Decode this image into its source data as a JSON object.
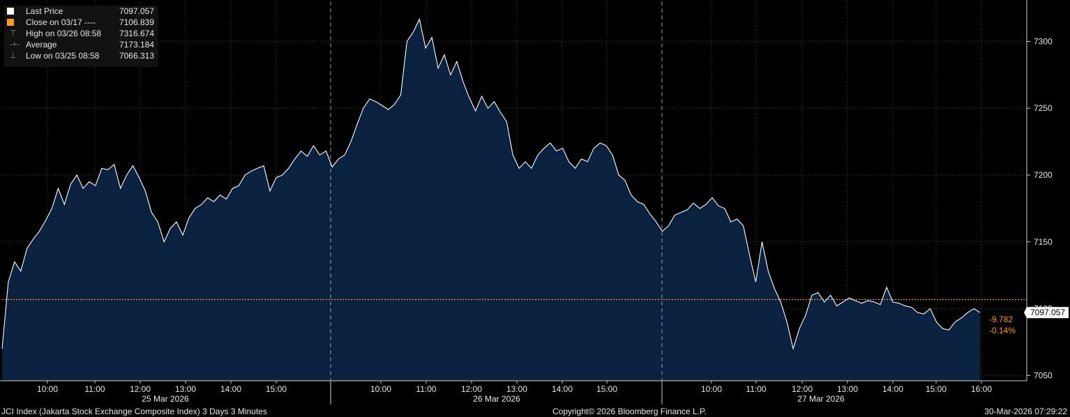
{
  "chart_data": {
    "type": "area",
    "ticker": "JCI Index",
    "x_time_labels": [
      "10:00",
      "11:00",
      "12:00",
      "13:00",
      "14:00",
      "15:00",
      "10:00",
      "11:00",
      "12:00",
      "13:00",
      "14:00",
      "15:00",
      "10:00",
      "11:00",
      "12:00",
      "13:00",
      "14:00",
      "15:00",
      "16:00"
    ],
    "x_date_labels": [
      "25 Mar 2026",
      "26 Mar 2026",
      "27 Mar 2026"
    ],
    "y_ticks": [
      "7300",
      "7250",
      "7200",
      "7150",
      "7100",
      "7050"
    ],
    "ylim": [
      7046,
      7330
    ],
    "grid": true,
    "series": [
      {
        "name": "Last Price",
        "values": [
          7070.0,
          7120.0,
          7135.0,
          7128.0,
          7145.0,
          7152.0,
          7158.0,
          7166.0,
          7175.0,
          7190.0,
          7178.0,
          7193.0,
          7200.0,
          7190.0,
          7195.0,
          7192.0,
          7205.0,
          7204.0,
          7208.0,
          7190.0,
          7200.0,
          7207.0,
          7198.0,
          7188.0,
          7172.0,
          7165.0,
          7150.0,
          7160.0,
          7165.0,
          7155.0,
          7168.0,
          7175.0,
          7178.0,
          7183.0,
          7180.0,
          7185.0,
          7182.0,
          7190.0,
          7192.0,
          7200.0,
          7203.0,
          7205.0,
          7207.0,
          7188.0,
          7198.0,
          7200.0,
          7205.0,
          7212.0,
          7218.0,
          7214.0,
          7222.0,
          7215.0,
          7218.0,
          7206.0,
          7212.0,
          7215.0,
          7225.0,
          7238.0,
          7250.0,
          7257.0,
          7255.0,
          7252.0,
          7249.0,
          7253.0,
          7260.0,
          7300.0,
          7307.0,
          7316.674,
          7295.0,
          7303.0,
          7280.0,
          7290.0,
          7275.0,
          7285.0,
          7270.0,
          7258.0,
          7248.0,
          7259.0,
          7250.0,
          7255.0,
          7247.0,
          7240.0,
          7215.0,
          7205.0,
          7210.0,
          7205.0,
          7215.0,
          7220.0,
          7224.0,
          7218.0,
          7220.0,
          7210.0,
          7205.0,
          7212.0,
          7210.0,
          7220.0,
          7224.0,
          7222.0,
          7215.0,
          7200.0,
          7196.0,
          7185.0,
          7180.0,
          7178.0,
          7171.0,
          7165.0,
          7158.0,
          7162.0,
          7170.0,
          7172.0,
          7174.0,
          7179.0,
          7175.0,
          7178.0,
          7183.0,
          7177.0,
          7175.0,
          7165.0,
          7167.0,
          7162.0,
          7140.0,
          7120.0,
          7150.0,
          7128.0,
          7115.0,
          7105.0,
          7090.0,
          7070.0,
          7085.0,
          7095.0,
          7110.0,
          7112.0,
          7105.0,
          7110.0,
          7102.0,
          7105.0,
          7108.0,
          7106.0,
          7104.0,
          7106.0,
          7105.0,
          7103.0,
          7116.0,
          7105.0,
          7104.0,
          7102.0,
          7101.0,
          7097.0,
          7096.0,
          7100.0,
          7090.0,
          7085.0,
          7084.0,
          7090.0,
          7093.0,
          7097.0,
          7100.0,
          7097.057
        ]
      }
    ],
    "reference_line": {
      "label": "Close on 03/17",
      "value": 7106.839,
      "color": "#ff9a1a"
    },
    "last_value_tag": "7097.057",
    "change_label": "-9.782",
    "change_pct_label": "-0.14%"
  },
  "legend": {
    "items": [
      {
        "label": "Last Price",
        "value": "7097.057",
        "color": "#ffffff"
      },
      {
        "label": "Close on 03/17 ----",
        "value": "7106.839",
        "color": "#ff9a1a"
      },
      {
        "label": "High on 03/26 08:58",
        "value": "7316.674",
        "color": "#8a8a8a"
      },
      {
        "label": "Average",
        "value": "7173.184",
        "color": "#8a8a8a"
      },
      {
        "label": "Low on 03/25 08:58",
        "value": "7066.313",
        "color": "#8a8a8a"
      }
    ]
  },
  "footer": {
    "title": "JCI Index (Jakarta Stock Exchange Composite Index) 3 Days 3 Minutes",
    "copyright": "Copyright© 2026 Bloomberg Finance L.P.",
    "timestamp": "30-Mar-2026 07:29:22"
  },
  "colors": {
    "background": "#000000",
    "area_fill": "#0a2240",
    "line": "#ffffff",
    "reference": "#ff9a1a",
    "grid": "#4a4a4a",
    "axis_text": "#e6e6e6"
  }
}
